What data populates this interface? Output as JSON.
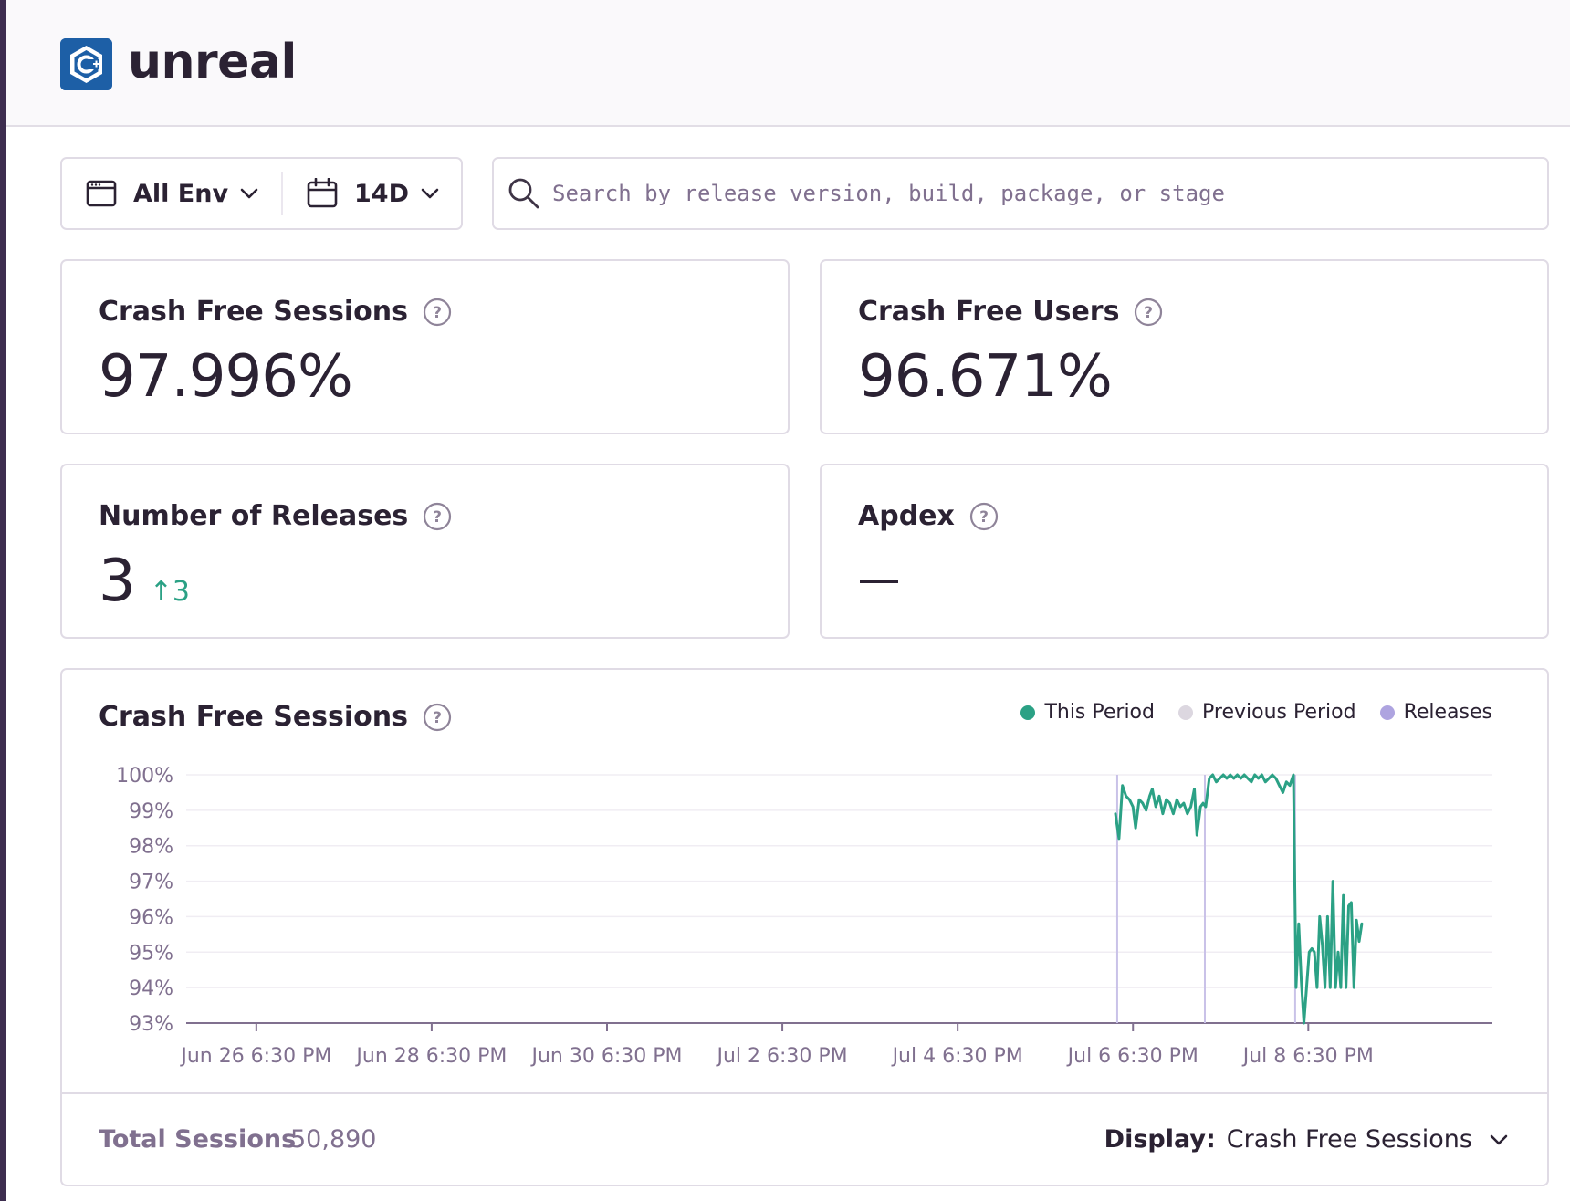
{
  "header": {
    "project_name": "unreal",
    "logo_icon": "cpp-platform-icon"
  },
  "filters": {
    "environment_label": "All Env",
    "date_range_label": "14D"
  },
  "search": {
    "placeholder": "Search by release version, build, package, or stage",
    "value": ""
  },
  "cards": {
    "crash_free_sessions": {
      "title": "Crash Free Sessions",
      "value": "97.996%"
    },
    "crash_free_users": {
      "title": "Crash Free Users",
      "value": "96.671%"
    },
    "number_of_releases": {
      "title": "Number of Releases",
      "value": "3",
      "delta": "↑3"
    },
    "apdex": {
      "title": "Apdex",
      "value": "—"
    }
  },
  "chart": {
    "title": "Crash Free Sessions",
    "legend": [
      {
        "label": "This Period",
        "color": "#2ba185"
      },
      {
        "label": "Previous Period",
        "color": "#dcd7e0"
      },
      {
        "label": "Releases",
        "color": "#aea4e0"
      }
    ],
    "footer": {
      "total_label": "Total Sessions",
      "total_value": "50,890",
      "display_label": "Display:",
      "display_value": "Crash Free Sessions"
    }
  },
  "chart_data": {
    "type": "line",
    "title": "Crash Free Sessions",
    "xlabel": "",
    "ylabel": "",
    "ylim": [
      93,
      100
    ],
    "y_ticks": [
      "100%",
      "99%",
      "98%",
      "97%",
      "96%",
      "95%",
      "94%",
      "93%"
    ],
    "x_range_days": [
      -0.8,
      14.1
    ],
    "x_tick_labels": [
      "Jun 26 6:30 PM",
      "Jun 28 6:30 PM",
      "Jun 30 6:30 PM",
      "Jul 2 6:30 PM",
      "Jul 4 6:30 PM",
      "Jul 6 6:30 PM",
      "Jul 8 6:30 PM"
    ],
    "x_tick_days": [
      0,
      2,
      4,
      6,
      8,
      10,
      12
    ],
    "grid": true,
    "legend_placement": "top-right",
    "release_markers_days": [
      9.82,
      10.82,
      11.85
    ],
    "series": [
      {
        "name": "This Period",
        "color": "#2ba185",
        "points": [
          [
            9.8,
            98.9
          ],
          [
            9.84,
            98.2
          ],
          [
            9.88,
            99.7
          ],
          [
            9.92,
            99.4
          ],
          [
            9.96,
            99.3
          ],
          [
            10.0,
            99.1
          ],
          [
            10.03,
            98.5
          ],
          [
            10.07,
            99.3
          ],
          [
            10.11,
            99.2
          ],
          [
            10.15,
            99.0
          ],
          [
            10.19,
            99.4
          ],
          [
            10.22,
            99.6
          ],
          [
            10.26,
            99.1
          ],
          [
            10.3,
            99.4
          ],
          [
            10.34,
            98.9
          ],
          [
            10.38,
            99.3
          ],
          [
            10.42,
            99.2
          ],
          [
            10.46,
            98.9
          ],
          [
            10.5,
            99.3
          ],
          [
            10.54,
            99.1
          ],
          [
            10.58,
            99.2
          ],
          [
            10.62,
            98.9
          ],
          [
            10.66,
            99.1
          ],
          [
            10.7,
            99.6
          ],
          [
            10.73,
            98.3
          ],
          [
            10.77,
            99.1
          ],
          [
            10.8,
            99.2
          ],
          [
            10.83,
            99.1
          ],
          [
            10.87,
            99.9
          ],
          [
            10.91,
            100.0
          ],
          [
            10.95,
            99.8
          ],
          [
            10.99,
            99.9
          ],
          [
            11.03,
            100.0
          ],
          [
            11.07,
            99.9
          ],
          [
            11.11,
            100.0
          ],
          [
            11.15,
            99.9
          ],
          [
            11.19,
            100.0
          ],
          [
            11.23,
            99.9
          ],
          [
            11.27,
            100.0
          ],
          [
            11.31,
            99.9
          ],
          [
            11.35,
            99.8
          ],
          [
            11.39,
            100.0
          ],
          [
            11.43,
            99.9
          ],
          [
            11.47,
            100.0
          ],
          [
            11.51,
            99.8
          ],
          [
            11.55,
            99.9
          ],
          [
            11.59,
            100.0
          ],
          [
            11.63,
            99.9
          ],
          [
            11.67,
            99.7
          ],
          [
            11.71,
            99.5
          ],
          [
            11.75,
            99.8
          ],
          [
            11.79,
            99.7
          ],
          [
            11.83,
            100.0
          ],
          [
            11.86,
            94.0
          ],
          [
            11.89,
            95.8
          ],
          [
            11.92,
            94.2
          ],
          [
            11.95,
            93.0
          ],
          [
            11.98,
            94.0
          ],
          [
            12.01,
            95.0
          ],
          [
            12.04,
            95.1
          ],
          [
            12.07,
            95.0
          ],
          [
            12.1,
            94.0
          ],
          [
            12.13,
            96.0
          ],
          [
            12.16,
            95.2
          ],
          [
            12.19,
            94.0
          ],
          [
            12.22,
            96.0
          ],
          [
            12.25,
            94.0
          ],
          [
            12.28,
            97.0
          ],
          [
            12.31,
            94.0
          ],
          [
            12.34,
            95.0
          ],
          [
            12.37,
            94.0
          ],
          [
            12.4,
            96.6
          ],
          [
            12.43,
            94.0
          ],
          [
            12.46,
            96.3
          ],
          [
            12.49,
            96.4
          ],
          [
            12.52,
            94.0
          ],
          [
            12.55,
            95.9
          ],
          [
            12.58,
            95.3
          ],
          [
            12.61,
            95.8
          ]
        ]
      }
    ]
  }
}
